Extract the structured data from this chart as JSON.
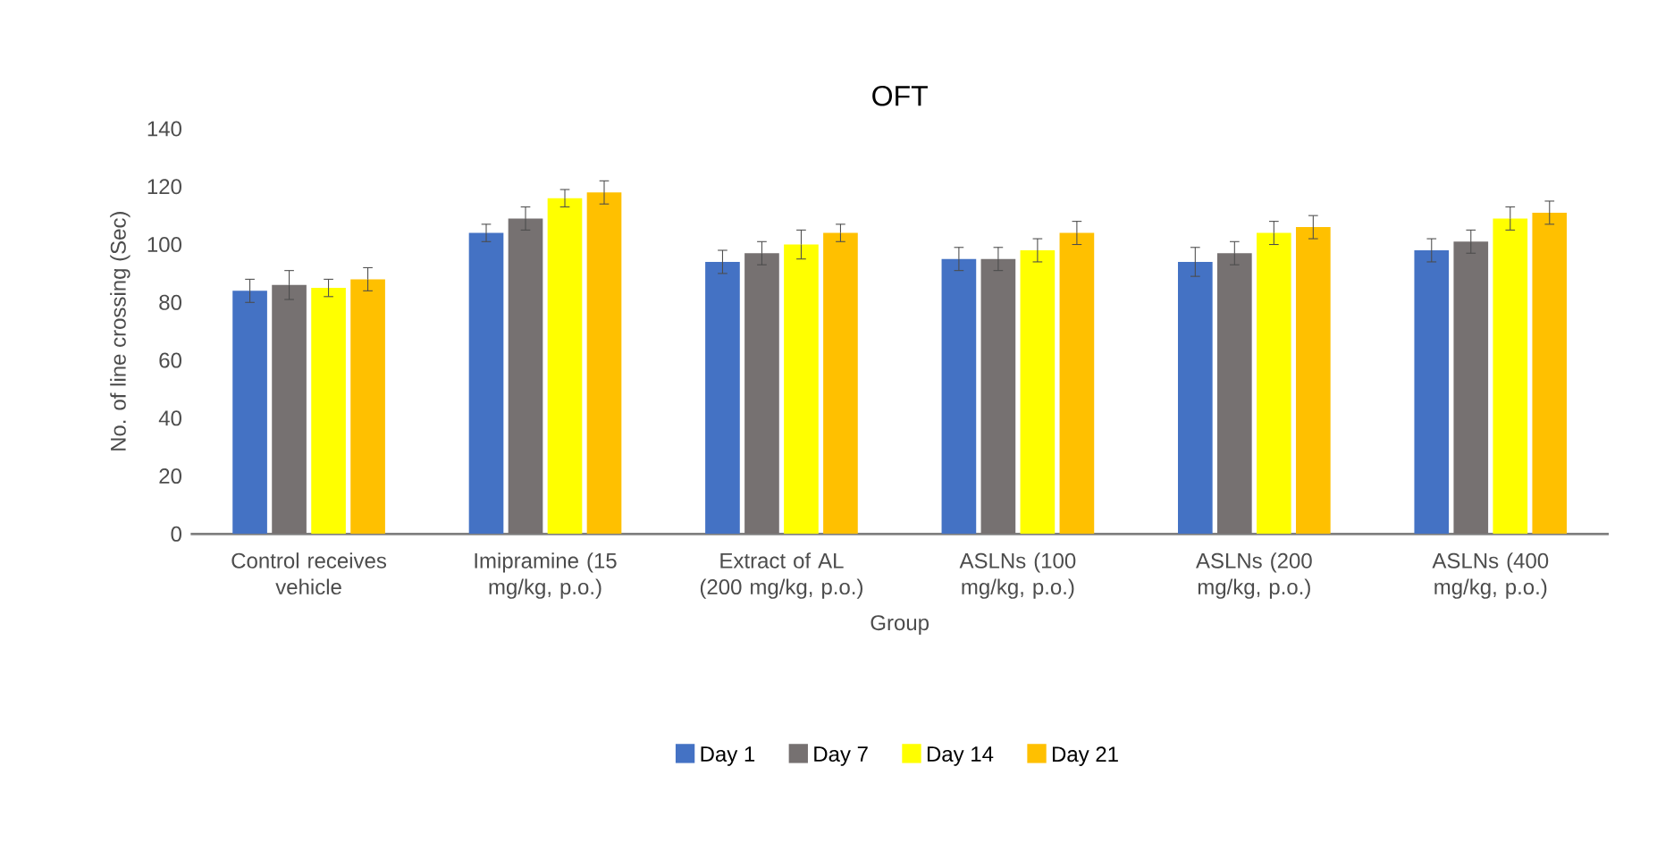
{
  "chart_data": {
    "type": "bar",
    "title": "OFT",
    "xlabel": "Group",
    "ylabel": "No. of line crossing (Sec)",
    "categories": [
      "Control receives vehicle",
      "Imipramine  (15 mg/kg, p.o.)",
      "Extract of AL (200 mg/kg, p.o.)",
      "ASLNs  (100 mg/kg, p.o.)",
      "ASLNs  (200 mg/kg, p.o.)",
      "ASLNs  (400 mg/kg, p.o.)"
    ],
    "series": [
      {
        "name": "Day 1",
        "color": "#4472c4",
        "values": [
          84,
          104,
          94,
          95,
          94,
          98
        ],
        "errors": [
          4,
          3,
          4,
          4,
          5,
          4
        ]
      },
      {
        "name": "Day 7",
        "color": "#767171",
        "values": [
          86,
          109,
          97,
          95,
          97,
          101
        ],
        "errors": [
          5,
          4,
          4,
          4,
          4,
          4
        ]
      },
      {
        "name": "Day 14",
        "color": "#ffff00",
        "values": [
          85,
          116,
          100,
          98,
          104,
          109
        ],
        "errors": [
          3,
          3,
          5,
          4,
          4,
          4
        ]
      },
      {
        "name": "Day 21",
        "color": "#ffc000",
        "values": [
          88,
          118,
          104,
          104,
          106,
          111
        ],
        "errors": [
          4,
          4,
          3,
          4,
          4,
          4
        ]
      }
    ],
    "ylim": [
      0,
      140
    ],
    "yticks": [
      0,
      20,
      40,
      60,
      80,
      100,
      120,
      140
    ],
    "legend": "bottom",
    "grid": false
  }
}
